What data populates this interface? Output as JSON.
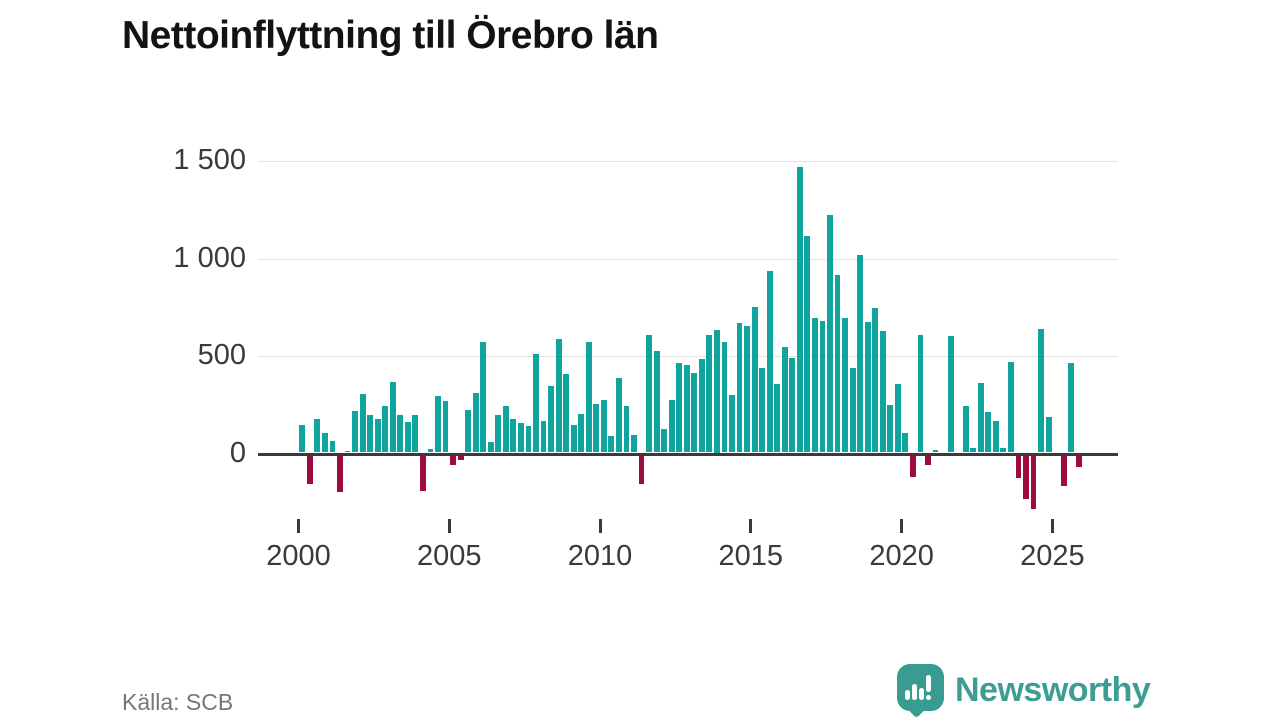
{
  "title": "Nettoinflyttning till Örebro län",
  "source": "Källa: SCB",
  "logo": {
    "text": "Newsworthy"
  },
  "chart_data": {
    "type": "bar",
    "title": "Nettoinflyttning till Örebro län",
    "frequency": "quarterly",
    "start": "2000Q1",
    "end": "2025Q4",
    "x_tick_labels": [
      "2000",
      "2005",
      "2010",
      "2015",
      "2020",
      "2025"
    ],
    "x_tick_quarter_indices": [
      0,
      20,
      40,
      60,
      80,
      100
    ],
    "y_ticks": [
      0,
      500,
      1000,
      1500
    ],
    "y_tick_labels": [
      "0",
      "500",
      "1 000",
      "1 500"
    ],
    "ylim": [
      -350,
      1550
    ],
    "grid": true,
    "legend": false,
    "colors": {
      "positive": "#10a49f",
      "negative": "#9e0c3e"
    },
    "values": [
      140,
      -140,
      170,
      100,
      60,
      -180,
      10,
      210,
      300,
      190,
      170,
      240,
      360,
      190,
      155,
      190,
      -175,
      20,
      290,
      265,
      -45,
      -20,
      220,
      305,
      565,
      55,
      190,
      240,
      170,
      150,
      135,
      505,
      160,
      340,
      580,
      400,
      140,
      195,
      565,
      250,
      270,
      85,
      380,
      240,
      90,
      -140,
      600,
      520,
      120,
      270,
      460,
      450,
      405,
      480,
      600,
      625,
      565,
      295,
      665,
      650,
      745,
      435,
      930,
      350,
      540,
      485,
      1460,
      1110,
      690,
      675,
      1215,
      910,
      690,
      435,
      1010,
      670,
      740,
      620,
      245,
      350,
      100,
      -105,
      600,
      -45,
      15,
      0,
      595,
      0,
      240,
      25,
      355,
      205,
      160,
      25,
      465,
      -110,
      -220,
      -270,
      630,
      180,
      0,
      -150,
      460,
      -55
    ]
  }
}
